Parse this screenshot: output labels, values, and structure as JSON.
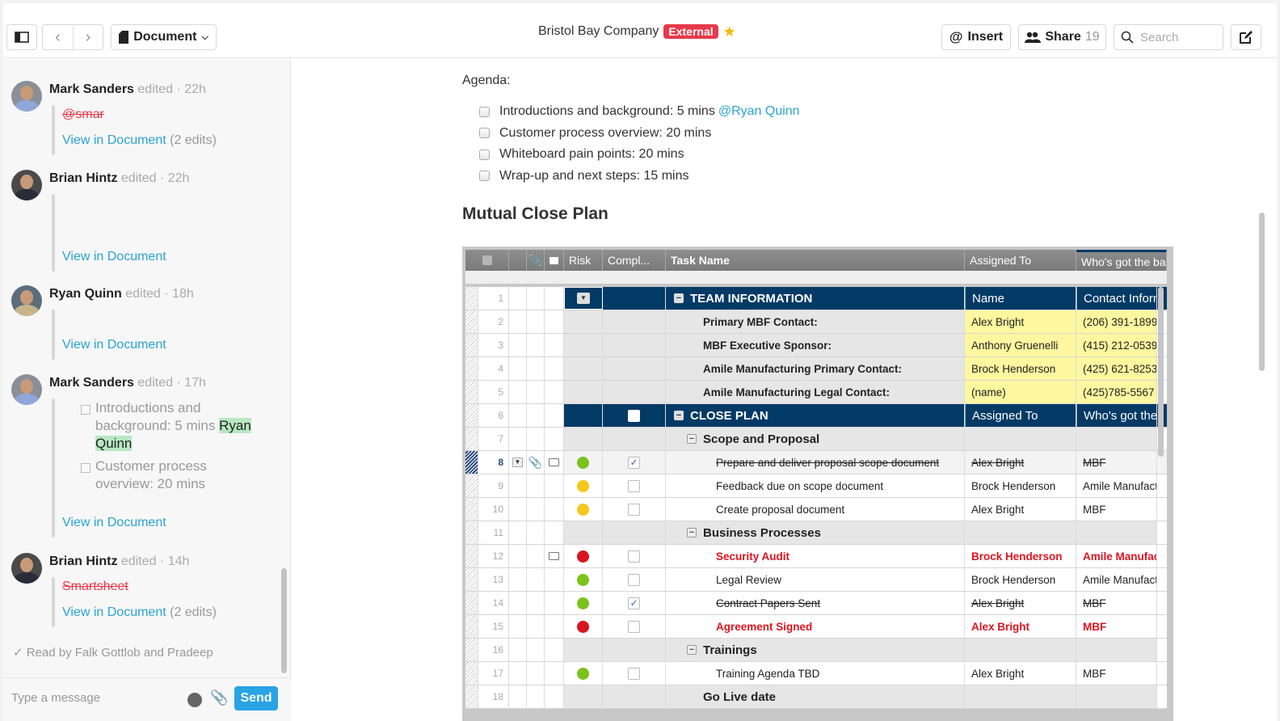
{
  "topbar": {
    "document_button": "Document",
    "title": "Bristol Bay Company",
    "badge": "External",
    "insert_label": "Insert",
    "share_label": "Share",
    "share_count": "19",
    "search_placeholder": "Search",
    "icons": {
      "sidebar": "sidebar-toggle-icon",
      "back": "chevron-left-icon",
      "forward": "chevron-right-icon",
      "doc": "document-icon",
      "star": "star-icon",
      "at": "at-icon",
      "people": "people-icon",
      "search": "search-icon",
      "compose": "compose-icon"
    }
  },
  "sidebar": {
    "entries": [
      {
        "name": "Mark Sanders",
        "meta": "edited · 22h",
        "deleted": "@smar",
        "link": "View in Document",
        "edits": "(2 edits)"
      },
      {
        "name": "Brian Hintz",
        "meta": "edited · 22h",
        "link": "View in Document"
      },
      {
        "name": "Ryan Quinn",
        "meta": "edited · 18h",
        "link": "View in Document"
      },
      {
        "name": "Mark Sanders",
        "meta": "edited · 17h",
        "quote1_a": "Introductions and background: 5 mins ",
        "quote1_hl_a": "Ryan",
        "quote1_hl_b": "Quinn",
        "quote2": "Customer process overview: 20 mins",
        "link": "View in Document"
      },
      {
        "name": "Brian Hintz",
        "meta": "edited · 14h",
        "deleted": "Smartsheet",
        "link": "View in Document",
        "edits": "(2 edits)"
      }
    ],
    "read_by": "✓ Read by Falk Gottlob and Pradeep",
    "composer_placeholder": "Type a message",
    "send_label": "Send"
  },
  "doc": {
    "agenda_label": "Agenda:",
    "agenda_items": [
      {
        "text": "Introductions and background: 5 mins",
        "mention": "@Ryan Quinn"
      },
      {
        "text": "Customer process overview: 20 mins"
      },
      {
        "text": "Whiteboard pain points: 20 mins"
      },
      {
        "text": "Wrap-up and next steps: 15 mins"
      }
    ],
    "heading": "Mutual Close Plan"
  },
  "sheet": {
    "columns": {
      "risk": "Risk",
      "complete": "Compl...",
      "task": "Task Name",
      "assigned": "Assigned To",
      "ball": "Who's got the ba"
    },
    "colors": {
      "green": "#7cc21d",
      "yellow": "#f5c71a",
      "red": "#d9141e",
      "section": "#033a66"
    },
    "rows": [
      {
        "n": "1",
        "type": "sec",
        "task": "TEAM INFORMATION",
        "assigned": "Name",
        "ball": "Contact Inform"
      },
      {
        "n": "2",
        "type": "info",
        "task": "Primary MBF Contact:",
        "assigned": "Alex Bright",
        "ball": "(206) 391-1899"
      },
      {
        "n": "3",
        "type": "info",
        "task": "MBF Executive Sponsor:",
        "assigned": "Anthony Gruenelli",
        "ball": "(415) 212-0539"
      },
      {
        "n": "4",
        "type": "info",
        "task": "Amile Manufacturing Primary Contact:",
        "assigned": "Brock Henderson",
        "ball": "(425) 621-8253"
      },
      {
        "n": "5",
        "type": "info",
        "task": "Amile Manufacturing Legal Contact:",
        "assigned": "(name)",
        "ball": "(425)785-5567"
      },
      {
        "n": "6",
        "type": "sec",
        "task": "CLOSE PLAN",
        "assigned": "Assigned To",
        "ball": "Who's got the"
      },
      {
        "n": "7",
        "type": "grp",
        "task": "Scope and Proposal"
      },
      {
        "n": "8",
        "type": "task",
        "risk": "green",
        "done": true,
        "task": "Prepare and deliver proposal scope document",
        "assigned": "Alex Bright",
        "ball": "MBF"
      },
      {
        "n": "9",
        "type": "task",
        "risk": "yellow",
        "done": false,
        "task": "Feedback due on scope document",
        "assigned": "Brock Henderson",
        "ball": "Amile Manufact"
      },
      {
        "n": "10",
        "type": "task",
        "risk": "yellow",
        "done": false,
        "task": "Create proposal document",
        "assigned": "Alex Bright",
        "ball": "MBF"
      },
      {
        "n": "11",
        "type": "grp",
        "task": "Business Processes"
      },
      {
        "n": "12",
        "type": "task",
        "risk": "red",
        "done": false,
        "task": "Security Audit",
        "assigned": "Brock Henderson",
        "ball": "Amile Manufac"
      },
      {
        "n": "13",
        "type": "task",
        "risk": "green",
        "done": false,
        "task": "Legal Review",
        "assigned": "Brock Henderson",
        "ball": "Amile Manufact"
      },
      {
        "n": "14",
        "type": "task",
        "risk": "green",
        "done": true,
        "task": "Contract Papers Sent",
        "assigned": "Alex Bright",
        "ball": "MBF"
      },
      {
        "n": "15",
        "type": "task",
        "risk": "red",
        "done": false,
        "task": "Agreement Signed",
        "assigned": "Alex Bright",
        "ball": "MBF"
      },
      {
        "n": "16",
        "type": "grp",
        "task": "Trainings"
      },
      {
        "n": "17",
        "type": "task",
        "risk": "green",
        "done": false,
        "task": "Training Agenda TBD",
        "assigned": "Alex Bright",
        "ball": "MBF"
      },
      {
        "n": "18",
        "type": "grp2",
        "task": "Go Live date"
      }
    ]
  }
}
